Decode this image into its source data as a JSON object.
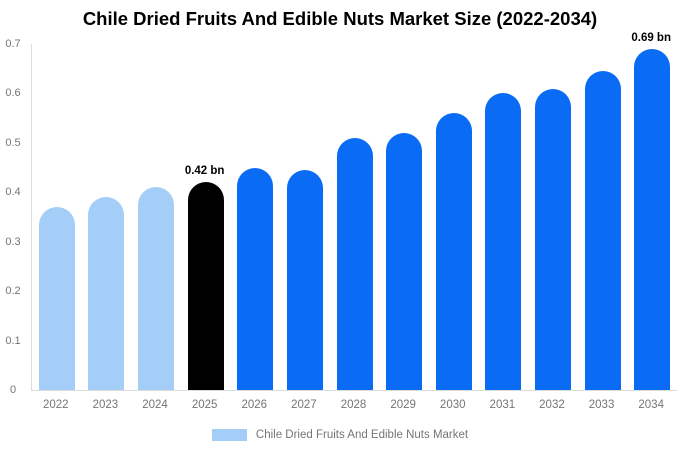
{
  "page": {
    "background": "#ffffff"
  },
  "chart_data": {
    "type": "bar",
    "title": "Chile Dried Fruits And Edible Nuts Market Size (2022-2034)",
    "categories": [
      "2022",
      "2023",
      "2024",
      "2025",
      "2026",
      "2027",
      "2028",
      "2029",
      "2030",
      "2031",
      "2032",
      "2033",
      "2034"
    ],
    "values": [
      0.37,
      0.39,
      0.41,
      0.42,
      0.45,
      0.445,
      0.51,
      0.52,
      0.56,
      0.6,
      0.61,
      0.645,
      0.69
    ],
    "unit": "bn",
    "bar_colors": [
      "#a4cdf8",
      "#a4cdf8",
      "#a4cdf8",
      "#000000",
      "#0a6cf5",
      "#0a6cf5",
      "#0a6cf5",
      "#0a6cf5",
      "#0a6cf5",
      "#0a6cf5",
      "#0a6cf5",
      "#0a6cf5",
      "#0a6cf5"
    ],
    "ylim": [
      0,
      0.7
    ],
    "ytick_labels": [
      "0",
      "0.1",
      "0.2",
      "0.3",
      "0.4",
      "0.5",
      "0.6",
      "0.7"
    ],
    "yticks": [
      0,
      0.1,
      0.2,
      0.3,
      0.4,
      0.5,
      0.6,
      0.7
    ],
    "grid": false,
    "annotations": [
      {
        "category": "2025",
        "text": "0.42 bn"
      },
      {
        "category": "2034",
        "text": "0.69 bn"
      }
    ],
    "legend": {
      "position": "bottom",
      "label": "Chile Dried Fruits And Edible Nuts Market",
      "swatch_color": "#a4cdf8"
    },
    "colors": {
      "axis_line": "#dddddd",
      "tick_text": "#757575",
      "title_text": "#000000",
      "annotation_text": "#000000",
      "historical_bar": "#a4cdf8",
      "highlight_bar": "#000000",
      "forecast_bar": "#0a6cf5"
    }
  }
}
